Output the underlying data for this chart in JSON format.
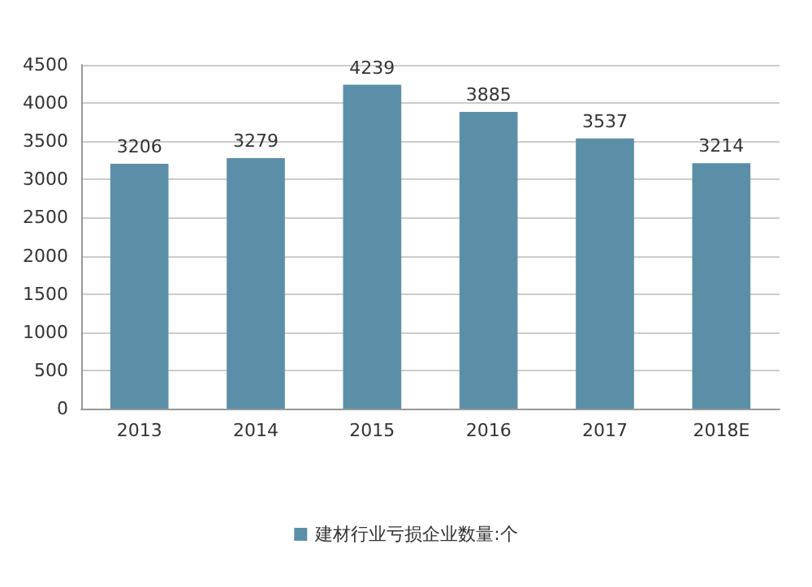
{
  "chart_data": {
    "type": "bar",
    "categories": [
      "2013",
      "2014",
      "2015",
      "2016",
      "2017",
      "2018E"
    ],
    "series": [
      {
        "name": "建材行业亏损企业数量:个",
        "color": "#5b8fa8",
        "values": [
          3206,
          3279,
          4239,
          3885,
          3537,
          3214
        ]
      }
    ],
    "ylim": [
      0,
      4500
    ],
    "yticks": [
      0,
      500,
      1000,
      1500,
      2000,
      2500,
      3000,
      3500,
      4000,
      4500
    ],
    "grid": "y",
    "legend": "bottom",
    "data_labels": true
  }
}
